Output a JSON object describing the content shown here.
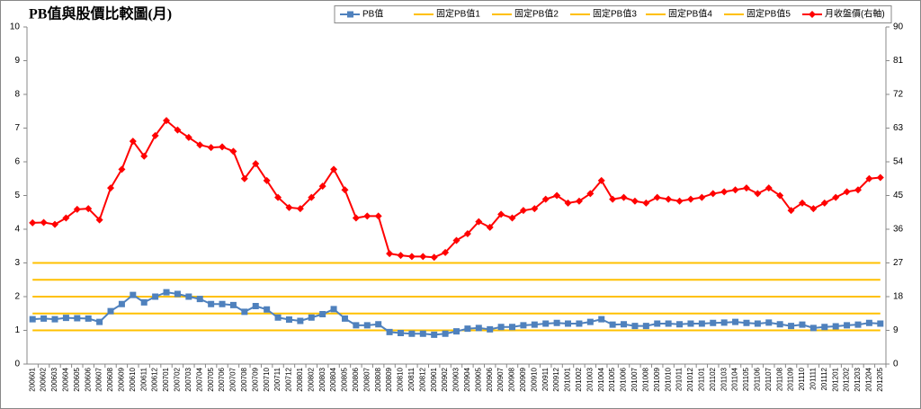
{
  "chart_data": {
    "type": "line",
    "title": "PB值與股價比較圖(月)",
    "categories": [
      "200601",
      "200602",
      "200603",
      "200604",
      "200605",
      "200606",
      "200607",
      "200608",
      "200609",
      "200610",
      "200611",
      "200612",
      "200701",
      "200702",
      "200703",
      "200704",
      "200705",
      "200706",
      "200707",
      "200708",
      "200709",
      "200710",
      "200711",
      "200712",
      "200801",
      "200802",
      "200803",
      "200804",
      "200805",
      "200806",
      "200807",
      "200808",
      "200809",
      "200810",
      "200811",
      "200812",
      "200901",
      "200902",
      "200903",
      "200904",
      "200905",
      "200906",
      "200907",
      "200908",
      "200909",
      "200910",
      "200911",
      "200912",
      "201001",
      "201002",
      "201003",
      "201004",
      "201005",
      "201006",
      "201007",
      "201008",
      "201009",
      "201010",
      "201011",
      "201012",
      "201101",
      "201102",
      "201103",
      "201104",
      "201105",
      "201106",
      "201107",
      "201108",
      "201109",
      "201110",
      "201111",
      "201112",
      "201201",
      "201202",
      "201203",
      "201204",
      "201205"
    ],
    "series": [
      {
        "name": "PB值",
        "color": "#4f81bd",
        "marker": "square",
        "values": [
          1.33,
          1.35,
          1.33,
          1.37,
          1.36,
          1.35,
          1.25,
          1.57,
          1.78,
          2.05,
          1.83,
          2.0,
          2.13,
          2.08,
          2.0,
          1.93,
          1.78,
          1.78,
          1.75,
          1.55,
          1.72,
          1.62,
          1.38,
          1.32,
          1.28,
          1.38,
          1.48,
          1.63,
          1.35,
          1.15,
          1.15,
          1.18,
          0.95,
          0.92,
          0.9,
          0.9,
          0.87,
          0.9,
          0.97,
          1.05,
          1.07,
          1.03,
          1.1,
          1.1,
          1.15,
          1.17,
          1.2,
          1.22,
          1.2,
          1.2,
          1.25,
          1.33,
          1.17,
          1.18,
          1.13,
          1.13,
          1.2,
          1.2,
          1.18,
          1.2,
          1.2,
          1.22,
          1.23,
          1.25,
          1.22,
          1.2,
          1.23,
          1.18,
          1.13,
          1.17,
          1.07,
          1.1,
          1.12,
          1.15,
          1.17,
          1.22,
          1.2
        ]
      },
      {
        "name": "固定PB值1",
        "color": "#ffc000",
        "values": [
          1,
          1,
          1,
          1,
          1,
          1,
          1,
          1,
          1,
          1,
          1,
          1,
          1,
          1,
          1,
          1,
          1,
          1,
          1,
          1,
          1,
          1,
          1,
          1,
          1,
          1,
          1,
          1,
          1,
          1,
          1,
          1,
          1,
          1,
          1,
          1,
          1,
          1,
          1,
          1,
          1,
          1,
          1,
          1,
          1,
          1,
          1,
          1,
          1,
          1,
          1,
          1,
          1,
          1,
          1,
          1,
          1,
          1,
          1,
          1,
          1,
          1,
          1,
          1,
          1,
          1,
          1,
          1,
          1,
          1,
          1,
          1,
          1,
          1,
          1,
          1,
          1
        ]
      },
      {
        "name": "固定PB值2",
        "color": "#ffc000",
        "values": [
          1.5,
          1.5,
          1.5,
          1.5,
          1.5,
          1.5,
          1.5,
          1.5,
          1.5,
          1.5,
          1.5,
          1.5,
          1.5,
          1.5,
          1.5,
          1.5,
          1.5,
          1.5,
          1.5,
          1.5,
          1.5,
          1.5,
          1.5,
          1.5,
          1.5,
          1.5,
          1.5,
          1.5,
          1.5,
          1.5,
          1.5,
          1.5,
          1.5,
          1.5,
          1.5,
          1.5,
          1.5,
          1.5,
          1.5,
          1.5,
          1.5,
          1.5,
          1.5,
          1.5,
          1.5,
          1.5,
          1.5,
          1.5,
          1.5,
          1.5,
          1.5,
          1.5,
          1.5,
          1.5,
          1.5,
          1.5,
          1.5,
          1.5,
          1.5,
          1.5,
          1.5,
          1.5,
          1.5,
          1.5,
          1.5,
          1.5,
          1.5,
          1.5,
          1.5,
          1.5,
          1.5,
          1.5,
          1.5,
          1.5,
          1.5,
          1.5,
          1.5
        ]
      },
      {
        "name": "固定PB值3",
        "color": "#ffc000",
        "values": [
          2,
          2,
          2,
          2,
          2,
          2,
          2,
          2,
          2,
          2,
          2,
          2,
          2,
          2,
          2,
          2,
          2,
          2,
          2,
          2,
          2,
          2,
          2,
          2,
          2,
          2,
          2,
          2,
          2,
          2,
          2,
          2,
          2,
          2,
          2,
          2,
          2,
          2,
          2,
          2,
          2,
          2,
          2,
          2,
          2,
          2,
          2,
          2,
          2,
          2,
          2,
          2,
          2,
          2,
          2,
          2,
          2,
          2,
          2,
          2,
          2,
          2,
          2,
          2,
          2,
          2,
          2,
          2,
          2,
          2,
          2,
          2,
          2,
          2,
          2,
          2,
          2
        ]
      },
      {
        "name": "固定PB值4",
        "color": "#ffc000",
        "values": [
          2.5,
          2.5,
          2.5,
          2.5,
          2.5,
          2.5,
          2.5,
          2.5,
          2.5,
          2.5,
          2.5,
          2.5,
          2.5,
          2.5,
          2.5,
          2.5,
          2.5,
          2.5,
          2.5,
          2.5,
          2.5,
          2.5,
          2.5,
          2.5,
          2.5,
          2.5,
          2.5,
          2.5,
          2.5,
          2.5,
          2.5,
          2.5,
          2.5,
          2.5,
          2.5,
          2.5,
          2.5,
          2.5,
          2.5,
          2.5,
          2.5,
          2.5,
          2.5,
          2.5,
          2.5,
          2.5,
          2.5,
          2.5,
          2.5,
          2.5,
          2.5,
          2.5,
          2.5,
          2.5,
          2.5,
          2.5,
          2.5,
          2.5,
          2.5,
          2.5,
          2.5,
          2.5,
          2.5,
          2.5,
          2.5,
          2.5,
          2.5,
          2.5,
          2.5,
          2.5,
          2.5,
          2.5,
          2.5,
          2.5,
          2.5,
          2.5,
          2.5
        ]
      },
      {
        "name": "固定PB值5",
        "color": "#ffc000",
        "values": [
          3,
          3,
          3,
          3,
          3,
          3,
          3,
          3,
          3,
          3,
          3,
          3,
          3,
          3,
          3,
          3,
          3,
          3,
          3,
          3,
          3,
          3,
          3,
          3,
          3,
          3,
          3,
          3,
          3,
          3,
          3,
          3,
          3,
          3,
          3,
          3,
          3,
          3,
          3,
          3,
          3,
          3,
          3,
          3,
          3,
          3,
          3,
          3,
          3,
          3,
          3,
          3,
          3,
          3,
          3,
          3,
          3,
          3,
          3,
          3,
          3,
          3,
          3,
          3,
          3,
          3,
          3,
          3,
          3,
          3,
          3,
          3,
          3,
          3,
          3,
          3,
          3
        ]
      },
      {
        "name": "月收盤價(右軸)",
        "color": "#ff0000",
        "marker": "diamond",
        "axis": "y2",
        "values": [
          37.7,
          37.8,
          37.3,
          39,
          41.3,
          41.5,
          38.5,
          47,
          52,
          59.5,
          55.5,
          61,
          65,
          62.5,
          60.5,
          58.5,
          57.8,
          58,
          56.8,
          49.5,
          53.5,
          49,
          44.5,
          41.8,
          41.5,
          44.5,
          47.5,
          52,
          46.5,
          39,
          39.5,
          39.5,
          29.5,
          29,
          28.7,
          28.7,
          28.5,
          29.8,
          33,
          34.8,
          38,
          36.5,
          40,
          39,
          41,
          41.5,
          44,
          45,
          43,
          43.5,
          45.5,
          49,
          44,
          44.5,
          43.5,
          43,
          44.5,
          44,
          43.5,
          44,
          44.5,
          45.5,
          46,
          46.5,
          47,
          45.5,
          47,
          45,
          41,
          43,
          41.5,
          43,
          44.5,
          46,
          46.5,
          49.5,
          49.8
        ]
      }
    ],
    "ylim": [
      0,
      10
    ],
    "yticks": [
      0,
      1,
      2,
      3,
      4,
      5,
      6,
      7,
      8,
      9,
      10
    ],
    "y2lim": [
      0,
      90
    ],
    "y2ticks": [
      0,
      9,
      18,
      27,
      36,
      45,
      54,
      63,
      72,
      81,
      90
    ],
    "legend": "top-right"
  }
}
